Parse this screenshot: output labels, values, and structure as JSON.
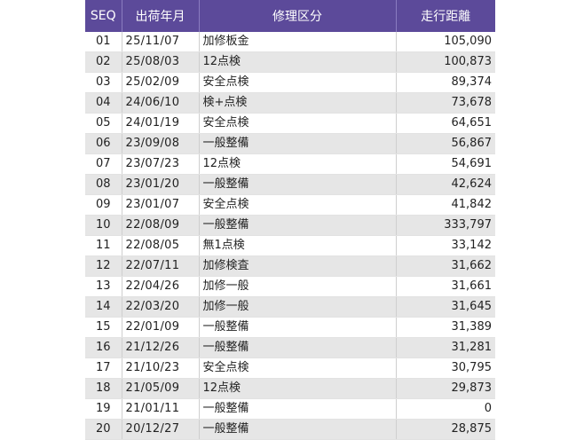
{
  "table": {
    "headers": {
      "seq": "SEQ",
      "ship_date": "出荷年月",
      "repair_type": "修理区分",
      "mileage": "走行距離"
    },
    "rows": [
      {
        "seq": "01",
        "date": "25/11/07",
        "type": "加修板金",
        "mileage": "105,090"
      },
      {
        "seq": "02",
        "date": "25/08/03",
        "type": "12点検",
        "mileage": "100,873"
      },
      {
        "seq": "03",
        "date": "25/02/09",
        "type": "安全点検",
        "mileage": "89,374"
      },
      {
        "seq": "04",
        "date": "24/06/10",
        "type": "検+点検",
        "mileage": "73,678"
      },
      {
        "seq": "05",
        "date": "24/01/19",
        "type": "安全点検",
        "mileage": "64,651"
      },
      {
        "seq": "06",
        "date": "23/09/08",
        "type": "一般整備",
        "mileage": "56,867"
      },
      {
        "seq": "07",
        "date": "23/07/23",
        "type": "12点検",
        "mileage": "54,691"
      },
      {
        "seq": "08",
        "date": "23/01/20",
        "type": "一般整備",
        "mileage": "42,624"
      },
      {
        "seq": "09",
        "date": "23/01/07",
        "type": "安全点検",
        "mileage": "41,842"
      },
      {
        "seq": "10",
        "date": "22/08/09",
        "type": "一般整備",
        "mileage": "333,797"
      },
      {
        "seq": "11",
        "date": "22/08/05",
        "type": "無1点検",
        "mileage": "33,142"
      },
      {
        "seq": "12",
        "date": "22/07/11",
        "type": "加修検査",
        "mileage": "31,662"
      },
      {
        "seq": "13",
        "date": "22/04/26",
        "type": "加修一般",
        "mileage": "31,661"
      },
      {
        "seq": "14",
        "date": "22/03/20",
        "type": "加修一般",
        "mileage": "31,645"
      },
      {
        "seq": "15",
        "date": "22/01/09",
        "type": "一般整備",
        "mileage": "31,389"
      },
      {
        "seq": "16",
        "date": "21/12/26",
        "type": "一般整備",
        "mileage": "31,281"
      },
      {
        "seq": "17",
        "date": "21/10/23",
        "type": "安全点検",
        "mileage": "30,795"
      },
      {
        "seq": "18",
        "date": "21/05/09",
        "type": "12点検",
        "mileage": "29,873"
      },
      {
        "seq": "19",
        "date": "21/01/11",
        "type": "一般整備",
        "mileage": "0"
      },
      {
        "seq": "20",
        "date": "20/12/27",
        "type": "一般整備",
        "mileage": "28,875"
      }
    ]
  },
  "colors": {
    "header_bg": "#5c4a9a",
    "header_text": "#ffffff",
    "stripe": "#e6e6e6"
  }
}
